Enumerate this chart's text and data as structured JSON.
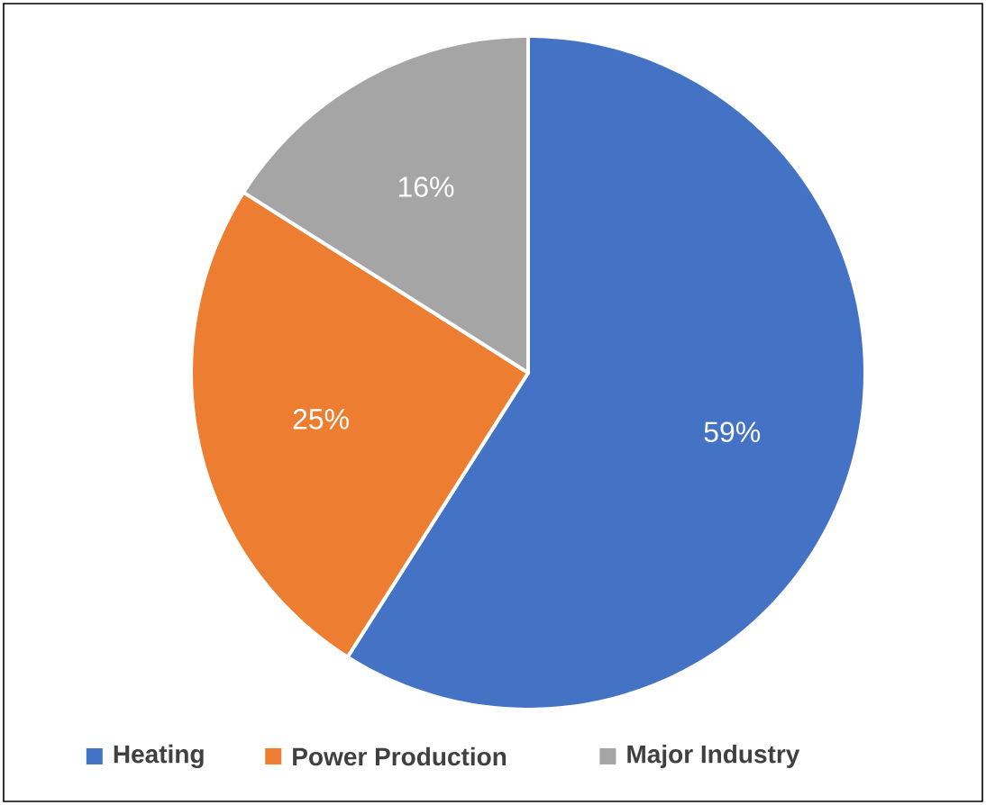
{
  "chart_data": {
    "type": "pie",
    "categories": [
      "Heating",
      "Power Production",
      "Major Industry"
    ],
    "values": [
      59,
      25,
      16
    ],
    "value_labels": [
      "59%",
      "25%",
      "16%"
    ],
    "colors": [
      "#4472c4",
      "#ed7d31",
      "#a5a5a5"
    ],
    "legend": "bottom"
  }
}
